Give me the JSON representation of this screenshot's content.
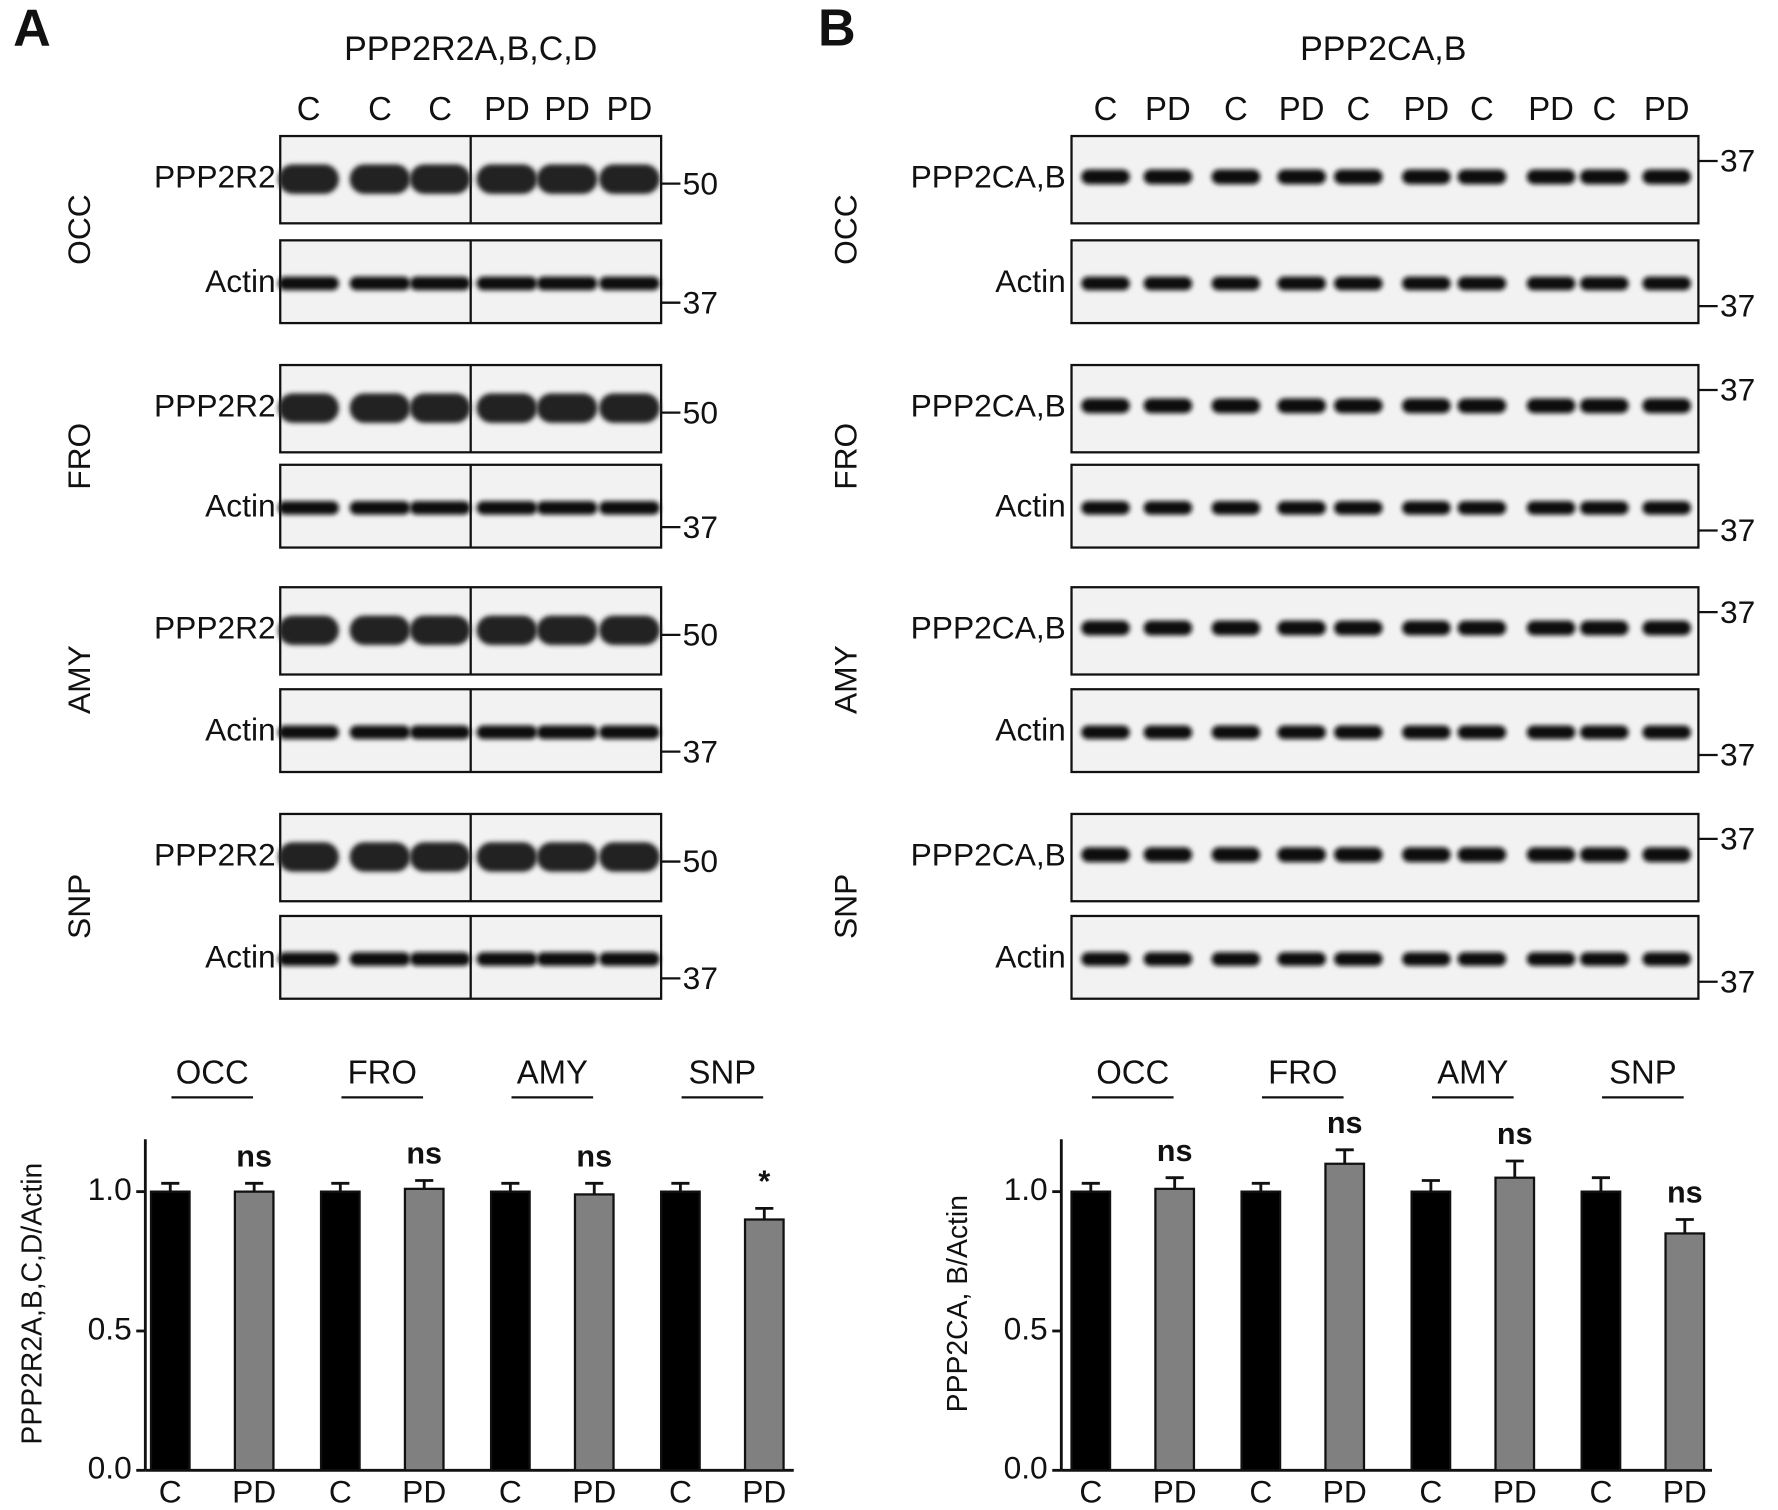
{
  "panels": [
    {
      "letter": "A",
      "blot_title": "PPP2R2A,B,C,D",
      "lanes": [
        "C",
        "C",
        "C",
        "PD",
        "PD",
        "PD"
      ],
      "rows": [
        {
          "region": "OCC",
          "target": "PPP2R2",
          "target_marker": "50",
          "control": "Actin",
          "control_marker": "37"
        },
        {
          "region": "FRO",
          "target": "PPP2R2",
          "target_marker": "50",
          "control": "Actin",
          "control_marker": "37"
        },
        {
          "region": "AMY",
          "target": "PPP2R2",
          "target_marker": "50",
          "control": "Actin",
          "control_marker": "37"
        },
        {
          "region": "SNP",
          "target": "PPP2R2",
          "target_marker": "50",
          "control": "Actin",
          "control_marker": "37"
        }
      ]
    },
    {
      "letter": "B",
      "blot_title": "PPP2CA,B",
      "lanes": [
        "C",
        "PD",
        "C",
        "PD",
        "C",
        "PD",
        "C",
        "PD",
        "C",
        "PD"
      ],
      "rows": [
        {
          "region": "OCC",
          "target": "PPP2CA,B",
          "target_marker": "37",
          "control": "Actin",
          "control_marker": "37"
        },
        {
          "region": "FRO",
          "target": "PPP2CA,B",
          "target_marker": "37",
          "control": "Actin",
          "control_marker": "37"
        },
        {
          "region": "AMY",
          "target": "PPP2CA,B",
          "target_marker": "37",
          "control": "Actin",
          "control_marker": "37"
        },
        {
          "region": "SNP",
          "target": "PPP2CA,B",
          "target_marker": "37",
          "control": "Actin",
          "control_marker": "37"
        }
      ]
    }
  ],
  "chart_data": [
    {
      "type": "bar",
      "ylabel": "PPP2R2A,B,C,D/Actin",
      "groups": [
        "OCC",
        "FRO",
        "AMY",
        "SNP"
      ],
      "categories": [
        "C",
        "PD",
        "C",
        "PD",
        "C",
        "PD",
        "C",
        "PD"
      ],
      "values": [
        1.0,
        1.0,
        1.0,
        1.01,
        1.0,
        0.99,
        1.0,
        0.9
      ],
      "errors": [
        0.03,
        0.03,
        0.03,
        0.03,
        0.03,
        0.04,
        0.03,
        0.04
      ],
      "colors": [
        "#000000",
        "#808080",
        "#000000",
        "#808080",
        "#000000",
        "#808080",
        "#000000",
        "#808080"
      ],
      "annotations": [
        null,
        "ns",
        null,
        "ns",
        null,
        "ns",
        null,
        "*"
      ],
      "ylim": [
        0,
        1.2
      ],
      "yticks": [
        {
          "value": 0,
          "label": "0.0"
        },
        {
          "value": 0.5,
          "label": "0.5"
        },
        {
          "value": 1,
          "label": "1.0"
        }
      ]
    },
    {
      "type": "bar",
      "ylabel": "PPP2CA, B/Actin",
      "groups": [
        "OCC",
        "FRO",
        "AMY",
        "SNP"
      ],
      "categories": [
        "C",
        "PD",
        "C",
        "PD",
        "C",
        "PD",
        "C",
        "PD"
      ],
      "values": [
        1.0,
        1.01,
        1.0,
        1.1,
        1.0,
        1.05,
        1.0,
        0.85
      ],
      "errors": [
        0.03,
        0.04,
        0.03,
        0.05,
        0.04,
        0.06,
        0.05,
        0.05
      ],
      "colors": [
        "#000000",
        "#808080",
        "#000000",
        "#808080",
        "#000000",
        "#808080",
        "#000000",
        "#808080"
      ],
      "annotations": [
        null,
        "ns",
        null,
        "ns",
        null,
        "ns",
        null,
        "ns"
      ],
      "ylim": [
        0,
        1.2
      ],
      "yticks": [
        {
          "value": 0,
          "label": "0.0"
        },
        {
          "value": 0.5,
          "label": "0.5"
        },
        {
          "value": 1,
          "label": "1.0"
        }
      ]
    }
  ]
}
